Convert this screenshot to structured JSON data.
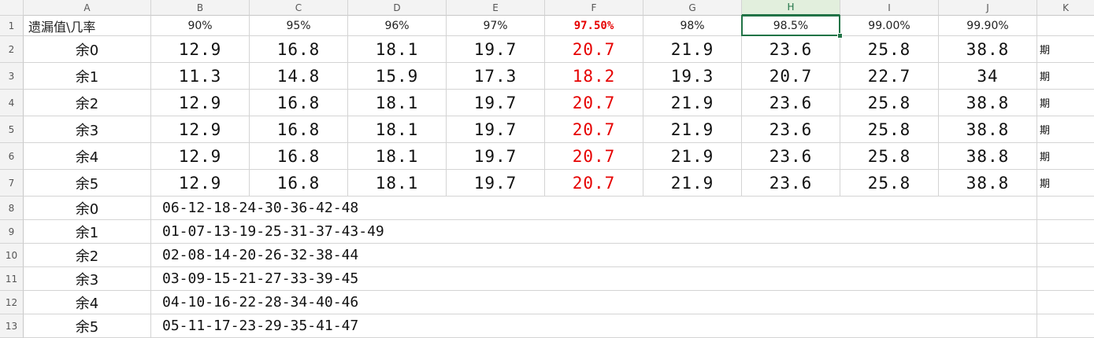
{
  "columns": [
    "A",
    "B",
    "C",
    "D",
    "E",
    "F",
    "G",
    "H",
    "I",
    "J",
    "K"
  ],
  "active_column": "H",
  "rows": [
    "1",
    "2",
    "3",
    "4",
    "5",
    "6",
    "7",
    "8",
    "9",
    "10",
    "11",
    "12",
    "13"
  ],
  "header_row": {
    "a": "遗漏值\\几率",
    "b": "90%",
    "c": "95%",
    "d": "96%",
    "e": "97%",
    "f": "97.50%",
    "g": "98%",
    "h": "98.5%",
    "i": "99.00%",
    "j": "99.90%"
  },
  "data_rows": [
    {
      "label": "余0",
      "values": [
        "12.9",
        "16.8",
        "18.1",
        "19.7",
        "20.7",
        "21.9",
        "23.6",
        "25.8",
        "38.8"
      ],
      "k": "期"
    },
    {
      "label": "余1",
      "values": [
        "11.3",
        "14.8",
        "15.9",
        "17.3",
        "18.2",
        "19.3",
        "20.7",
        "22.7",
        "34"
      ],
      "k": "期"
    },
    {
      "label": "余2",
      "values": [
        "12.9",
        "16.8",
        "18.1",
        "19.7",
        "20.7",
        "21.9",
        "23.6",
        "25.8",
        "38.8"
      ],
      "k": "期"
    },
    {
      "label": "余3",
      "values": [
        "12.9",
        "16.8",
        "18.1",
        "19.7",
        "20.7",
        "21.9",
        "23.6",
        "25.8",
        "38.8"
      ],
      "k": "期"
    },
    {
      "label": "余4",
      "values": [
        "12.9",
        "16.8",
        "18.1",
        "19.7",
        "20.7",
        "21.9",
        "23.6",
        "25.8",
        "38.8"
      ],
      "k": "期"
    },
    {
      "label": "余5",
      "values": [
        "12.9",
        "16.8",
        "18.1",
        "19.7",
        "20.7",
        "21.9",
        "23.6",
        "25.8",
        "38.8"
      ],
      "k": "期"
    }
  ],
  "sequence_rows": [
    {
      "label": "余0",
      "text": "06-12-18-24-30-36-42-48"
    },
    {
      "label": "余1",
      "text": "01-07-13-19-25-31-37-43-49"
    },
    {
      "label": "余2",
      "text": "02-08-14-20-26-32-38-44"
    },
    {
      "label": "余3",
      "text": "03-09-15-21-27-33-39-45"
    },
    {
      "label": "余4",
      "text": "04-10-16-22-28-34-40-46"
    },
    {
      "label": "余5",
      "text": "05-11-17-23-29-35-41-47"
    }
  ],
  "colors": {
    "highlight_red": "#e60000",
    "selection_green": "#217346"
  }
}
